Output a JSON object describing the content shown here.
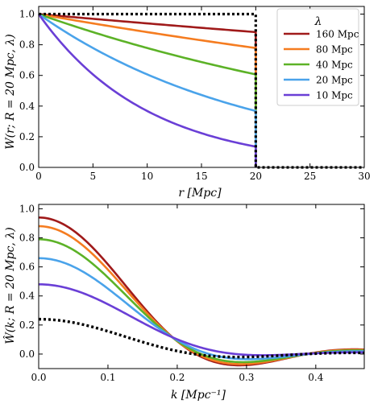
{
  "chart_data": [
    {
      "type": "line",
      "xlabel": "r [Mpc]",
      "ylabel": "W(r; R = 20 Mpc, λ)",
      "xlim": [
        0,
        30
      ],
      "ylim": [
        0,
        1.05
      ],
      "xticks": [
        0,
        5,
        10,
        15,
        20,
        25,
        30
      ],
      "yticks": [
        0.0,
        0.2,
        0.4,
        0.6,
        0.8,
        1.0
      ],
      "xtick_labels": [
        "0",
        "5",
        "10",
        "15",
        "20",
        "25",
        "30"
      ],
      "ytick_labels": [
        "0.0",
        "0.2",
        "0.4",
        "0.6",
        "0.8",
        "1.0"
      ],
      "grid": false,
      "legend": {
        "title": "λ",
        "placement": "top-right",
        "entries": [
          "160 Mpc",
          "80 Mpc",
          "40 Mpc",
          "20 Mpc",
          "10 Mpc"
        ]
      },
      "series": [
        {
          "name": "160 Mpc",
          "lambda": 160,
          "color": "#a01a1a",
          "x": [
            0,
            5,
            10,
            15,
            20
          ],
          "y": [
            1.0,
            0.969,
            0.939,
            0.91,
            0.882
          ]
        },
        {
          "name": "80 Mpc",
          "lambda": 80,
          "color": "#f57c20",
          "x": [
            0,
            5,
            10,
            15,
            20
          ],
          "y": [
            1.0,
            0.939,
            0.882,
            0.829,
            0.779
          ]
        },
        {
          "name": "40 Mpc",
          "lambda": 40,
          "color": "#5cb227",
          "x": [
            0,
            5,
            10,
            15,
            20
          ],
          "y": [
            1.0,
            0.882,
            0.779,
            0.687,
            0.607
          ]
        },
        {
          "name": "20 Mpc",
          "lambda": 20,
          "color": "#4aa3ea",
          "x": [
            0,
            5,
            10,
            15,
            20
          ],
          "y": [
            1.0,
            0.779,
            0.607,
            0.472,
            0.368
          ]
        },
        {
          "name": "10 Mpc",
          "lambda": 10,
          "color": "#6a3fd6",
          "x": [
            0,
            5,
            10,
            15,
            20
          ],
          "y": [
            1.0,
            0.607,
            0.368,
            0.223,
            0.135
          ]
        },
        {
          "style": "dotted",
          "color": "#000000",
          "x": [
            0,
            20,
            20,
            30
          ],
          "y": [
            1.0,
            1.0,
            0.0,
            0.0
          ]
        }
      ]
    },
    {
      "type": "line",
      "xlabel": "k [Mpc⁻¹]",
      "ylabel": "Ŵ(k; R = 20 Mpc, λ)",
      "xlim": [
        0,
        0.47
      ],
      "ylim": [
        -0.1,
        1.03
      ],
      "xticks": [
        0.0,
        0.1,
        0.2,
        0.3,
        0.4
      ],
      "yticks": [
        0.0,
        0.2,
        0.4,
        0.6,
        0.8,
        1.0
      ],
      "xtick_labels": [
        "0.0",
        "0.1",
        "0.2",
        "0.3",
        "0.4"
      ],
      "ytick_labels": [
        "0.0",
        "0.2",
        "0.4",
        "0.6",
        "0.8",
        "1.0"
      ],
      "grid": false,
      "series": [
        {
          "lambda": 160,
          "color": "#a01a1a"
        },
        {
          "lambda": 80,
          "color": "#f57c20"
        },
        {
          "lambda": 40,
          "color": "#5cb227"
        },
        {
          "lambda": 20,
          "color": "#4aa3ea"
        },
        {
          "lambda": 10,
          "color": "#6a3fd6"
        },
        {
          "style": "dotted",
          "color": "#000000"
        }
      ],
      "values_at_k0": [
        0.94,
        0.88,
        0.79,
        0.66,
        0.48,
        0.24
      ]
    }
  ]
}
